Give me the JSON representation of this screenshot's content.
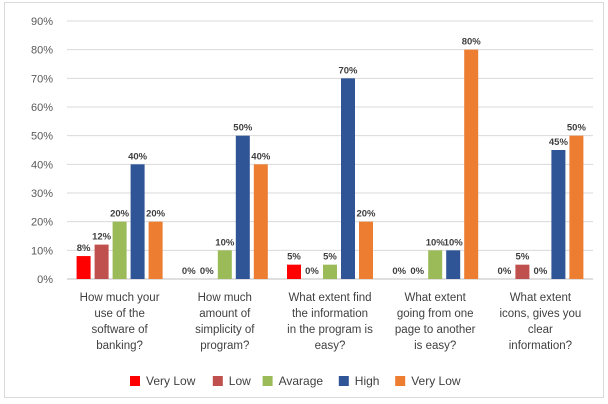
{
  "chart_data": {
    "type": "bar",
    "title": "",
    "xlabel": "",
    "ylabel": "",
    "ylim": [
      0,
      90
    ],
    "yticks": [
      "0%",
      "10%",
      "20%",
      "30%",
      "40%",
      "50%",
      "60%",
      "70%",
      "80%",
      "90%"
    ],
    "grid": true,
    "legend_position": "bottom",
    "categories": [
      [
        "How much your",
        "use of the",
        "software of",
        "banking?"
      ],
      [
        "How much",
        "amount of",
        "simplicity of",
        "program?"
      ],
      [
        "What extent find",
        "the information",
        "in the program is",
        "easy?"
      ],
      [
        "What extent",
        "going from one",
        "page to another",
        "is easy?"
      ],
      [
        "What extent",
        "icons, gives you",
        "clear",
        "information?"
      ]
    ],
    "series": [
      {
        "name": "Very Low",
        "color": "#ff0000",
        "values": [
          8,
          0,
          5,
          0,
          0
        ],
        "labels": [
          "8%",
          "0%",
          "5%",
          "0%",
          "0%"
        ]
      },
      {
        "name": "Low",
        "color": "#c0504d",
        "values": [
          12,
          0,
          0,
          0,
          5
        ],
        "labels": [
          "12%",
          "0%",
          "0%",
          "0%",
          "5%"
        ]
      },
      {
        "name": "Avarage",
        "color": "#9bbb59",
        "values": [
          20,
          10,
          5,
          10,
          0
        ],
        "labels": [
          "20%",
          "10%",
          "5%",
          "10%",
          "0%"
        ]
      },
      {
        "name": "High",
        "color": "#2f5597",
        "values": [
          40,
          50,
          70,
          10,
          45
        ],
        "labels": [
          "40%",
          "50%",
          "70%",
          "10%",
          "45%"
        ]
      },
      {
        "name": "Very Low",
        "color": "#ed7d31",
        "values": [
          20,
          40,
          20,
          80,
          50
        ],
        "labels": [
          "20%",
          "40%",
          "20%",
          "80%",
          "50%"
        ]
      }
    ]
  }
}
